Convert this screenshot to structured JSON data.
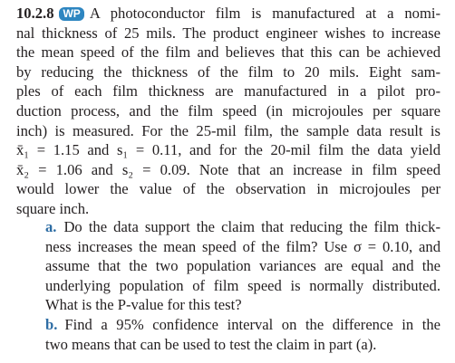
{
  "problem": {
    "number": "10.2.8",
    "badge": "WP",
    "lines": [
      "A photoconductor film is manufactured at a nomi-",
      "nal thickness of 25 mils. The product engineer wishes to increase",
      "the mean speed of the film and believes that this can be achieved",
      "by reducing the thickness of the film to 20 mils. Eight sam-",
      "ples of each film thickness are manufactured in a pilot pro-",
      "duction process, and the film speed (in microjoules per square",
      "inch) is measured. For the 25-mil film, the sample data result is",
      "x̄₁ = 1.15 and s₁ = 0.11, and for the 20-mil film the data yield",
      "x̄₂ = 1.06 and s₂ = 0.09. Note that an increase in film speed",
      "would lower the value of the observation in microjoules per",
      "square inch."
    ]
  },
  "parts": [
    {
      "label": "a.",
      "lines": [
        "Do the data support the claim that reducing the film thick-",
        "ness increases the mean speed of the film? Use σ = 0.10, and",
        "assume that the two population variances are equal and the",
        "underlying population of film speed is normally distributed.",
        "What is the P-value for this test?"
      ]
    },
    {
      "label": "b.",
      "lines": [
        "Find a 95% confidence interval on the difference in the",
        "two means that can be used to test the claim in part (a)."
      ]
    }
  ]
}
